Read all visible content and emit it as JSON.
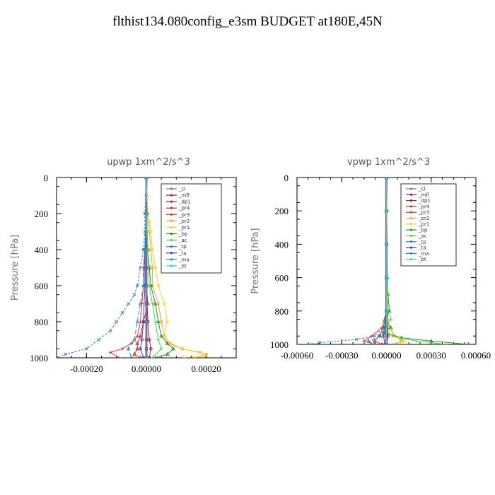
{
  "title": "flthist134.080config_e3sm  BUDGET at180E,45N",
  "colors": {
    "_cl": "#9467bd",
    "_mfl": "#8e1b6e",
    "_dp1": "#9e1c3a",
    "_pr4": "#d62728",
    "_pr3": "#ff2a2a",
    "_pr2": "#ff9f33",
    "_pr1": "#f0d52a",
    "_bp": "#1a9e1a",
    "_ac": "#4fd14f",
    "_tp": "#2d7fd8",
    "_ta": "#3a3ad8",
    "_ma": "#1f8fb0",
    "_bt": "#1ad8e0"
  },
  "chart_data": [
    {
      "type": "line",
      "title": "upwp   1xm^2/s^3",
      "ylabel": "Pressure [hPa]",
      "xlim": [
        -0.0003,
        0.0003
      ],
      "ylim": [
        1000,
        0
      ],
      "yticks": [
        0,
        200,
        400,
        600,
        800,
        1000
      ],
      "yticklabels": [
        "0",
        "200",
        "400",
        "600",
        "800",
        "1000"
      ],
      "xticks": [
        -0.0002,
        0.0,
        0.0002
      ],
      "xticklabels": [
        "-0.00020",
        "0.00000",
        "0.00020"
      ],
      "legend_position": "top-right",
      "legend": [
        "_cl",
        "_mfl",
        "_dp1",
        "_pr4",
        "_pr3",
        "_pr2",
        "_pr1",
        "_bp",
        "_ac",
        "_tp",
        "_ta",
        "_ma",
        "_bt"
      ],
      "series": [
        {
          "name": "_cl",
          "p": [
            0,
            100,
            200,
            300,
            400,
            500,
            600,
            700,
            800,
            900,
            950,
            1000
          ],
          "v": [
            0,
            0,
            0,
            0,
            0,
            0,
            0,
            0,
            0,
            0,
            0,
            0
          ]
        },
        {
          "name": "_mfl",
          "p": [
            0,
            100,
            200,
            300,
            400,
            500,
            600,
            700,
            800,
            900,
            950,
            1000
          ],
          "v": [
            0,
            0,
            0,
            0,
            0,
            0,
            0,
            0,
            0,
            0,
            0,
            0
          ]
        },
        {
          "name": "_dp1",
          "p": [
            0,
            200,
            400,
            600,
            800,
            900,
            950,
            1000
          ],
          "v": [
            0,
            0,
            0,
            0,
            5e-06,
            1e-05,
            1.5e-05,
            1e-05
          ]
        },
        {
          "name": "_pr4",
          "p": [
            0,
            200,
            400,
            600,
            700,
            800,
            880,
            920,
            950,
            980,
            1000
          ],
          "v": [
            0,
            0,
            0,
            0,
            5e-06,
            -1e-05,
            -2e-05,
            -3e-05,
            -3e-05,
            -4e-05,
            -2e-05
          ]
        },
        {
          "name": "_pr3",
          "p": [
            0,
            200,
            400,
            500,
            600,
            700,
            800,
            880,
            920,
            950,
            970,
            1000
          ],
          "v": [
            0,
            0,
            -5e-06,
            -1e-05,
            -1e-05,
            -1.5e-05,
            -2e-05,
            -3e-05,
            -5e-05,
            -8e-05,
            -0.00012,
            -9e-05
          ]
        },
        {
          "name": "_pr2",
          "p": [
            0,
            200,
            300,
            400,
            500,
            600,
            700,
            800,
            880,
            920,
            950,
            970,
            990,
            1000
          ],
          "v": [
            0,
            5e-06,
            1e-05,
            1.5e-05,
            2e-05,
            2e-05,
            4e-05,
            5e-05,
            6e-05,
            8e-05,
            0.00012,
            0.00018,
            0.0002,
            0.00012
          ]
        },
        {
          "name": "_pr1",
          "p": [
            0,
            200,
            250,
            300,
            400,
            500,
            600,
            700,
            800,
            880,
            920,
            950,
            980,
            1000
          ],
          "v": [
            0,
            5e-06,
            1e-05,
            1.5e-05,
            2e-05,
            3e-05,
            4e-05,
            6e-05,
            7e-05,
            6e-05,
            7e-05,
            0.00012,
            0.0002,
            0.00016
          ]
        },
        {
          "name": "_bp",
          "p": [
            0,
            200,
            400,
            500,
            600,
            700,
            800,
            880,
            920,
            950,
            980,
            1000
          ],
          "v": [
            0,
            0,
            5e-06,
            1e-05,
            1.5e-05,
            3e-05,
            4e-05,
            5e-05,
            7e-05,
            9e-05,
            7e-05,
            3e-05
          ]
        },
        {
          "name": "_ac",
          "p": [
            0,
            200,
            400,
            600,
            700,
            800,
            900,
            950,
            1000
          ],
          "v": [
            0,
            0,
            5e-06,
            1e-05,
            2e-05,
            3e-05,
            4e-05,
            5e-05,
            2e-05
          ]
        },
        {
          "name": "_tp",
          "p": [
            0,
            200,
            300,
            400,
            500,
            600,
            650,
            700,
            750,
            800,
            850,
            900,
            950,
            980,
            1000
          ],
          "v": [
            0,
            -5e-06,
            -5e-06,
            -1e-05,
            -2e-05,
            -3e-05,
            -4e-05,
            -6e-05,
            -8e-05,
            -0.0001,
            -0.00012,
            -0.00016,
            -0.0002,
            -0.00027,
            -0.0003
          ]
        },
        {
          "name": "_ta",
          "p": [
            0,
            200,
            400,
            600,
            800,
            900,
            950,
            1000
          ],
          "v": [
            0,
            0,
            -5e-06,
            -5e-06,
            -1e-05,
            -1.5e-05,
            -2e-05,
            -1e-05
          ]
        },
        {
          "name": "_ma",
          "p": [
            0,
            200,
            400,
            600,
            700,
            800,
            900,
            950,
            1000
          ],
          "v": [
            0,
            0,
            -5e-06,
            -1e-05,
            -2e-05,
            -3e-05,
            -4e-05,
            -6e-05,
            -5e-05
          ]
        },
        {
          "name": "_bt",
          "p": [
            0,
            200,
            400,
            600,
            800,
            1000
          ],
          "v": [
            0,
            0,
            0,
            0,
            0,
            0
          ]
        }
      ]
    },
    {
      "type": "line",
      "title": "vpwp   1xm^2/s^3",
      "ylabel": "Pressure [hPa]",
      "xlim": [
        -0.0006,
        0.0006
      ],
      "ylim": [
        1000,
        0
      ],
      "yticks": [
        0,
        200,
        400,
        600,
        800,
        1000
      ],
      "yticklabels": [
        "0",
        "200",
        "400",
        "600",
        "800",
        "1000"
      ],
      "xticks": [
        -0.0006,
        -0.0003,
        0.0,
        0.0003,
        0.0006
      ],
      "xticklabels": [
        "-0.00060",
        "-0.00030",
        "0.00000",
        "0.00030",
        "0.00060"
      ],
      "legend_position": "top-right",
      "legend": [
        "_cl",
        "_mfl",
        "_dp1",
        "_pr4",
        "_pr3",
        "_pr2",
        "_pr1",
        "_bp",
        "_ac",
        "_tp",
        "_ta",
        "_ma",
        "_bt"
      ],
      "series": [
        {
          "name": "_cl",
          "p": [
            0,
            200,
            400,
            600,
            800,
            1000
          ],
          "v": [
            0,
            0,
            0,
            0,
            0,
            0
          ]
        },
        {
          "name": "_mfl",
          "p": [
            0,
            200,
            400,
            600,
            800,
            1000
          ],
          "v": [
            0,
            0,
            0,
            0,
            0,
            0
          ]
        },
        {
          "name": "_dp1",
          "p": [
            0,
            200,
            400,
            600,
            800,
            950,
            1000
          ],
          "v": [
            0,
            0,
            0,
            0,
            0,
            1e-05,
            0
          ]
        },
        {
          "name": "_pr4",
          "p": [
            0,
            200,
            400,
            600,
            800,
            900,
            950,
            980,
            1000
          ],
          "v": [
            0,
            0,
            0,
            0,
            0,
            -2e-05,
            -5e-05,
            -8e-05,
            -3e-05
          ]
        },
        {
          "name": "_pr3",
          "p": [
            0,
            200,
            400,
            600,
            800,
            900,
            950,
            980,
            1000
          ],
          "v": [
            0,
            0,
            0,
            0,
            0,
            -3e-05,
            -0.0001,
            -0.00015,
            -8e-05
          ]
        },
        {
          "name": "_pr2",
          "p": [
            0,
            200,
            400,
            600,
            800,
            900,
            950,
            980,
            1000
          ],
          "v": [
            0,
            0,
            0,
            0,
            5e-06,
            2e-05,
            6e-05,
            0.0001,
            5e-05
          ]
        },
        {
          "name": "_pr1",
          "p": [
            0,
            200,
            400,
            600,
            800,
            900,
            950,
            980,
            1000
          ],
          "v": [
            0,
            5e-06,
            0,
            0,
            5e-06,
            2e-05,
            5e-05,
            0.00012,
            8e-05
          ]
        },
        {
          "name": "_bp",
          "p": [
            0,
            200,
            400,
            600,
            700,
            800,
            850,
            900,
            930,
            960,
            980,
            1000
          ],
          "v": [
            0,
            0,
            0,
            5e-06,
            1e-05,
            2e-05,
            -1e-05,
            3e-05,
            -2e-05,
            0.0001,
            0.0003,
            0.00055
          ]
        },
        {
          "name": "_ac",
          "p": [
            0,
            200,
            400,
            600,
            700,
            800,
            850,
            900,
            950,
            980,
            1000
          ],
          "v": [
            0,
            0,
            0,
            0,
            1e-05,
            1e-05,
            3e-05,
            -2e-05,
            4e-05,
            0.0002,
            0.0004
          ]
        },
        {
          "name": "_tp",
          "p": [
            0,
            200,
            400,
            600,
            800,
            900,
            950,
            970,
            990,
            1000
          ],
          "v": [
            0,
            0,
            0,
            0,
            0,
            -2e-05,
            -8e-05,
            -0.0002,
            -0.00045,
            -0.0005
          ]
        },
        {
          "name": "_ta",
          "p": [
            0,
            200,
            400,
            600,
            800,
            900,
            950,
            1000
          ],
          "v": [
            0,
            0,
            0,
            0,
            0,
            -1e-05,
            -2e-05,
            -1e-05
          ]
        },
        {
          "name": "_ma",
          "p": [
            0,
            200,
            400,
            600,
            800,
            900,
            950,
            980,
            1000
          ],
          "v": [
            0,
            0,
            0,
            0,
            0,
            -1e-05,
            -4e-05,
            -0.00012,
            -8e-05
          ]
        },
        {
          "name": "_bt",
          "p": [
            0,
            200,
            400,
            600,
            800,
            1000
          ],
          "v": [
            0,
            0,
            0,
            0,
            0,
            0
          ]
        }
      ]
    }
  ]
}
